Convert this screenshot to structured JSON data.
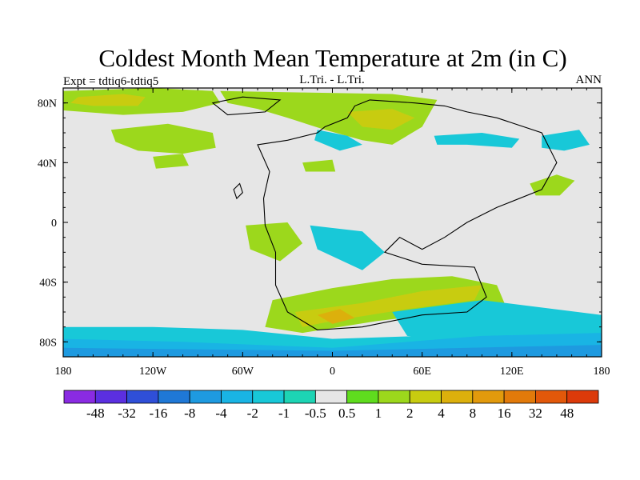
{
  "chart_data": {
    "type": "heatmap",
    "title": "Coldest Month Mean Temperature at 2m (in C)",
    "subtitle_left": "Expt = tdtiq6-tdtiq5",
    "subtitle_center": "L.Tri. - L.Tri.",
    "subtitle_right": "ANN",
    "xlim": [
      -180,
      180
    ],
    "ylim": [
      -90,
      90
    ],
    "x_ticks": [
      {
        "value": -180,
        "label": "180"
      },
      {
        "value": -120,
        "label": "120W"
      },
      {
        "value": -60,
        "label": "60W"
      },
      {
        "value": 0,
        "label": "0"
      },
      {
        "value": 60,
        "label": "60E"
      },
      {
        "value": 120,
        "label": "120E"
      },
      {
        "value": 180,
        "label": "180"
      }
    ],
    "y_ticks": [
      {
        "value": 80,
        "label": "80N"
      },
      {
        "value": 40,
        "label": "40N"
      },
      {
        "value": 0,
        "label": "0"
      },
      {
        "value": -40,
        "label": "40S"
      },
      {
        "value": -80,
        "label": "80S"
      }
    ],
    "colorbar": {
      "levels": [
        "-48",
        "-32",
        "-16",
        "-8",
        "-4",
        "-2",
        "-1",
        "-0.5",
        "0.5",
        "1",
        "2",
        "4",
        "8",
        "16",
        "32",
        "48"
      ],
      "colors": [
        "#8a2be2",
        "#5b2fe0",
        "#2f4fd8",
        "#1f78d6",
        "#1e9ae0",
        "#19b4e4",
        "#18c8d8",
        "#1dd4b4",
        "#e6e6e6",
        "#5fdc1e",
        "#9cd81c",
        "#c8cc10",
        "#dcb00c",
        "#e29a0c",
        "#e27a0a",
        "#e2580a",
        "#dc3a0a"
      ]
    },
    "background_color": "#e6e6e6",
    "regions": [
      {
        "name": "arctic-band-west",
        "level": "1",
        "points": [
          [
            -180,
            88
          ],
          [
            -120,
            90
          ],
          [
            -80,
            88
          ],
          [
            -75,
            80
          ],
          [
            -100,
            74
          ],
          [
            -140,
            72
          ],
          [
            -180,
            75
          ]
        ]
      },
      {
        "name": "arctic-core-west",
        "level": "2",
        "points": [
          [
            -170,
            84
          ],
          [
            -140,
            86
          ],
          [
            -125,
            84
          ],
          [
            -130,
            78
          ],
          [
            -160,
            78
          ],
          [
            -175,
            80
          ]
        ]
      },
      {
        "name": "arctic-band-east",
        "level": "1",
        "points": [
          [
            -75,
            88
          ],
          [
            -20,
            87
          ],
          [
            40,
            86
          ],
          [
            70,
            82
          ],
          [
            60,
            64
          ],
          [
            40,
            52
          ],
          [
            20,
            55
          ],
          [
            -5,
            62
          ],
          [
            -30,
            70
          ],
          [
            -50,
            76
          ],
          [
            -70,
            80
          ]
        ]
      },
      {
        "name": "arctic-core-east",
        "level": "2",
        "points": [
          [
            10,
            74
          ],
          [
            40,
            76
          ],
          [
            55,
            70
          ],
          [
            40,
            62
          ],
          [
            20,
            64
          ]
        ]
      },
      {
        "name": "arctic-cool",
        "level": "-1",
        "points": [
          [
            -10,
            62
          ],
          [
            10,
            58
          ],
          [
            20,
            52
          ],
          [
            5,
            48
          ],
          [
            -12,
            55
          ]
        ]
      },
      {
        "name": "canada-patch",
        "level": "1",
        "points": [
          [
            -148,
            62
          ],
          [
            -110,
            66
          ],
          [
            -80,
            60
          ],
          [
            -78,
            50
          ],
          [
            -100,
            46
          ],
          [
            -130,
            48
          ],
          [
            -145,
            54
          ]
        ]
      },
      {
        "name": "siberia-cool",
        "level": "-1",
        "points": [
          [
            68,
            58
          ],
          [
            100,
            60
          ],
          [
            125,
            56
          ],
          [
            120,
            50
          ],
          [
            90,
            52
          ],
          [
            70,
            52
          ]
        ]
      },
      {
        "name": "pacific-north-patch",
        "level": "1",
        "points": [
          [
            -120,
            44
          ],
          [
            -100,
            46
          ],
          [
            -96,
            38
          ],
          [
            -118,
            36
          ]
        ]
      },
      {
        "name": "europe-patch",
        "level": "1",
        "points": [
          [
            -20,
            40
          ],
          [
            0,
            42
          ],
          [
            2,
            34
          ],
          [
            -18,
            34
          ]
        ]
      },
      {
        "name": "asia-east-cool",
        "level": "-1",
        "points": [
          [
            140,
            58
          ],
          [
            165,
            62
          ],
          [
            172,
            52
          ],
          [
            155,
            48
          ],
          [
            140,
            50
          ]
        ]
      },
      {
        "name": "southeast-patch",
        "level": "1",
        "points": [
          [
            132,
            26
          ],
          [
            150,
            32
          ],
          [
            162,
            28
          ],
          [
            152,
            18
          ],
          [
            136,
            18
          ]
        ]
      },
      {
        "name": "tropics-patch",
        "level": "1",
        "points": [
          [
            -58,
            -2
          ],
          [
            -30,
            0
          ],
          [
            -20,
            -14
          ],
          [
            -35,
            -26
          ],
          [
            -55,
            -18
          ]
        ]
      },
      {
        "name": "tropics-cool",
        "level": "-1",
        "points": [
          [
            -15,
            -2
          ],
          [
            20,
            -6
          ],
          [
            35,
            -20
          ],
          [
            20,
            -32
          ],
          [
            -10,
            -18
          ]
        ]
      },
      {
        "name": "south-band",
        "level": "1",
        "points": [
          [
            -40,
            -52
          ],
          [
            0,
            -44
          ],
          [
            40,
            -38
          ],
          [
            80,
            -36
          ],
          [
            110,
            -42
          ],
          [
            115,
            -54
          ],
          [
            80,
            -60
          ],
          [
            30,
            -66
          ],
          [
            -20,
            -74
          ],
          [
            -45,
            -70
          ]
        ]
      },
      {
        "name": "south-core",
        "level": "2",
        "points": [
          [
            -25,
            -60
          ],
          [
            20,
            -54
          ],
          [
            60,
            -46
          ],
          [
            100,
            -42
          ],
          [
            95,
            -52
          ],
          [
            50,
            -58
          ],
          [
            0,
            -66
          ],
          [
            -20,
            -70
          ]
        ]
      },
      {
        "name": "south-warm",
        "level": "4",
        "points": [
          [
            -10,
            -62
          ],
          [
            5,
            -58
          ],
          [
            15,
            -64
          ],
          [
            0,
            -68
          ]
        ]
      },
      {
        "name": "south-cool",
        "level": "-1",
        "points": [
          [
            40,
            -60
          ],
          [
            100,
            -52
          ],
          [
            180,
            -62
          ],
          [
            180,
            -80
          ],
          [
            100,
            -82
          ],
          [
            50,
            -76
          ]
        ]
      },
      {
        "name": "antarctic-band",
        "level": "-1",
        "points": [
          [
            -180,
            -70
          ],
          [
            -120,
            -70
          ],
          [
            -60,
            -72
          ],
          [
            0,
            -78
          ],
          [
            60,
            -76
          ],
          [
            120,
            -72
          ],
          [
            180,
            -70
          ],
          [
            180,
            -90
          ],
          [
            -180,
            -90
          ]
        ]
      },
      {
        "name": "antarctic-deep",
        "level": "-2",
        "points": [
          [
            -180,
            -78
          ],
          [
            -100,
            -80
          ],
          [
            0,
            -84
          ],
          [
            100,
            -76
          ],
          [
            180,
            -74
          ],
          [
            180,
            -90
          ],
          [
            -180,
            -90
          ]
        ]
      },
      {
        "name": "antarctic-core",
        "level": "-4",
        "points": [
          [
            -180,
            -84
          ],
          [
            0,
            -86
          ],
          [
            180,
            -82
          ],
          [
            180,
            -90
          ],
          [
            -180,
            -90
          ]
        ]
      }
    ],
    "coastlines": [
      {
        "name": "continent-outline",
        "points": [
          [
            -50,
            52
          ],
          [
            -30,
            55
          ],
          [
            -10,
            60
          ],
          [
            -5,
            64
          ],
          [
            10,
            70
          ],
          [
            15,
            78
          ],
          [
            25,
            82
          ],
          [
            55,
            80
          ],
          [
            75,
            78
          ],
          [
            90,
            74
          ],
          [
            110,
            70
          ],
          [
            140,
            60
          ],
          [
            150,
            40
          ],
          [
            140,
            22
          ],
          [
            110,
            10
          ],
          [
            90,
            0
          ],
          [
            75,
            -10
          ],
          [
            60,
            -18
          ],
          [
            45,
            -10
          ],
          [
            35,
            -20
          ],
          [
            60,
            -28
          ],
          [
            95,
            -30
          ],
          [
            103,
            -50
          ],
          [
            90,
            -60
          ],
          [
            60,
            -62
          ],
          [
            20,
            -70
          ],
          [
            -10,
            -72
          ],
          [
            -30,
            -60
          ],
          [
            -38,
            -42
          ],
          [
            -38,
            -20
          ],
          [
            -45,
            -2
          ],
          [
            -46,
            16
          ],
          [
            -42,
            34
          ],
          [
            -50,
            52
          ]
        ]
      },
      {
        "name": "island-north",
        "points": [
          [
            -80,
            80
          ],
          [
            -60,
            84
          ],
          [
            -35,
            82
          ],
          [
            -45,
            74
          ],
          [
            -70,
            72
          ]
        ]
      },
      {
        "name": "island-west",
        "points": [
          [
            -66,
            22
          ],
          [
            -62,
            26
          ],
          [
            -60,
            20
          ],
          [
            -64,
            16
          ]
        ]
      }
    ]
  }
}
